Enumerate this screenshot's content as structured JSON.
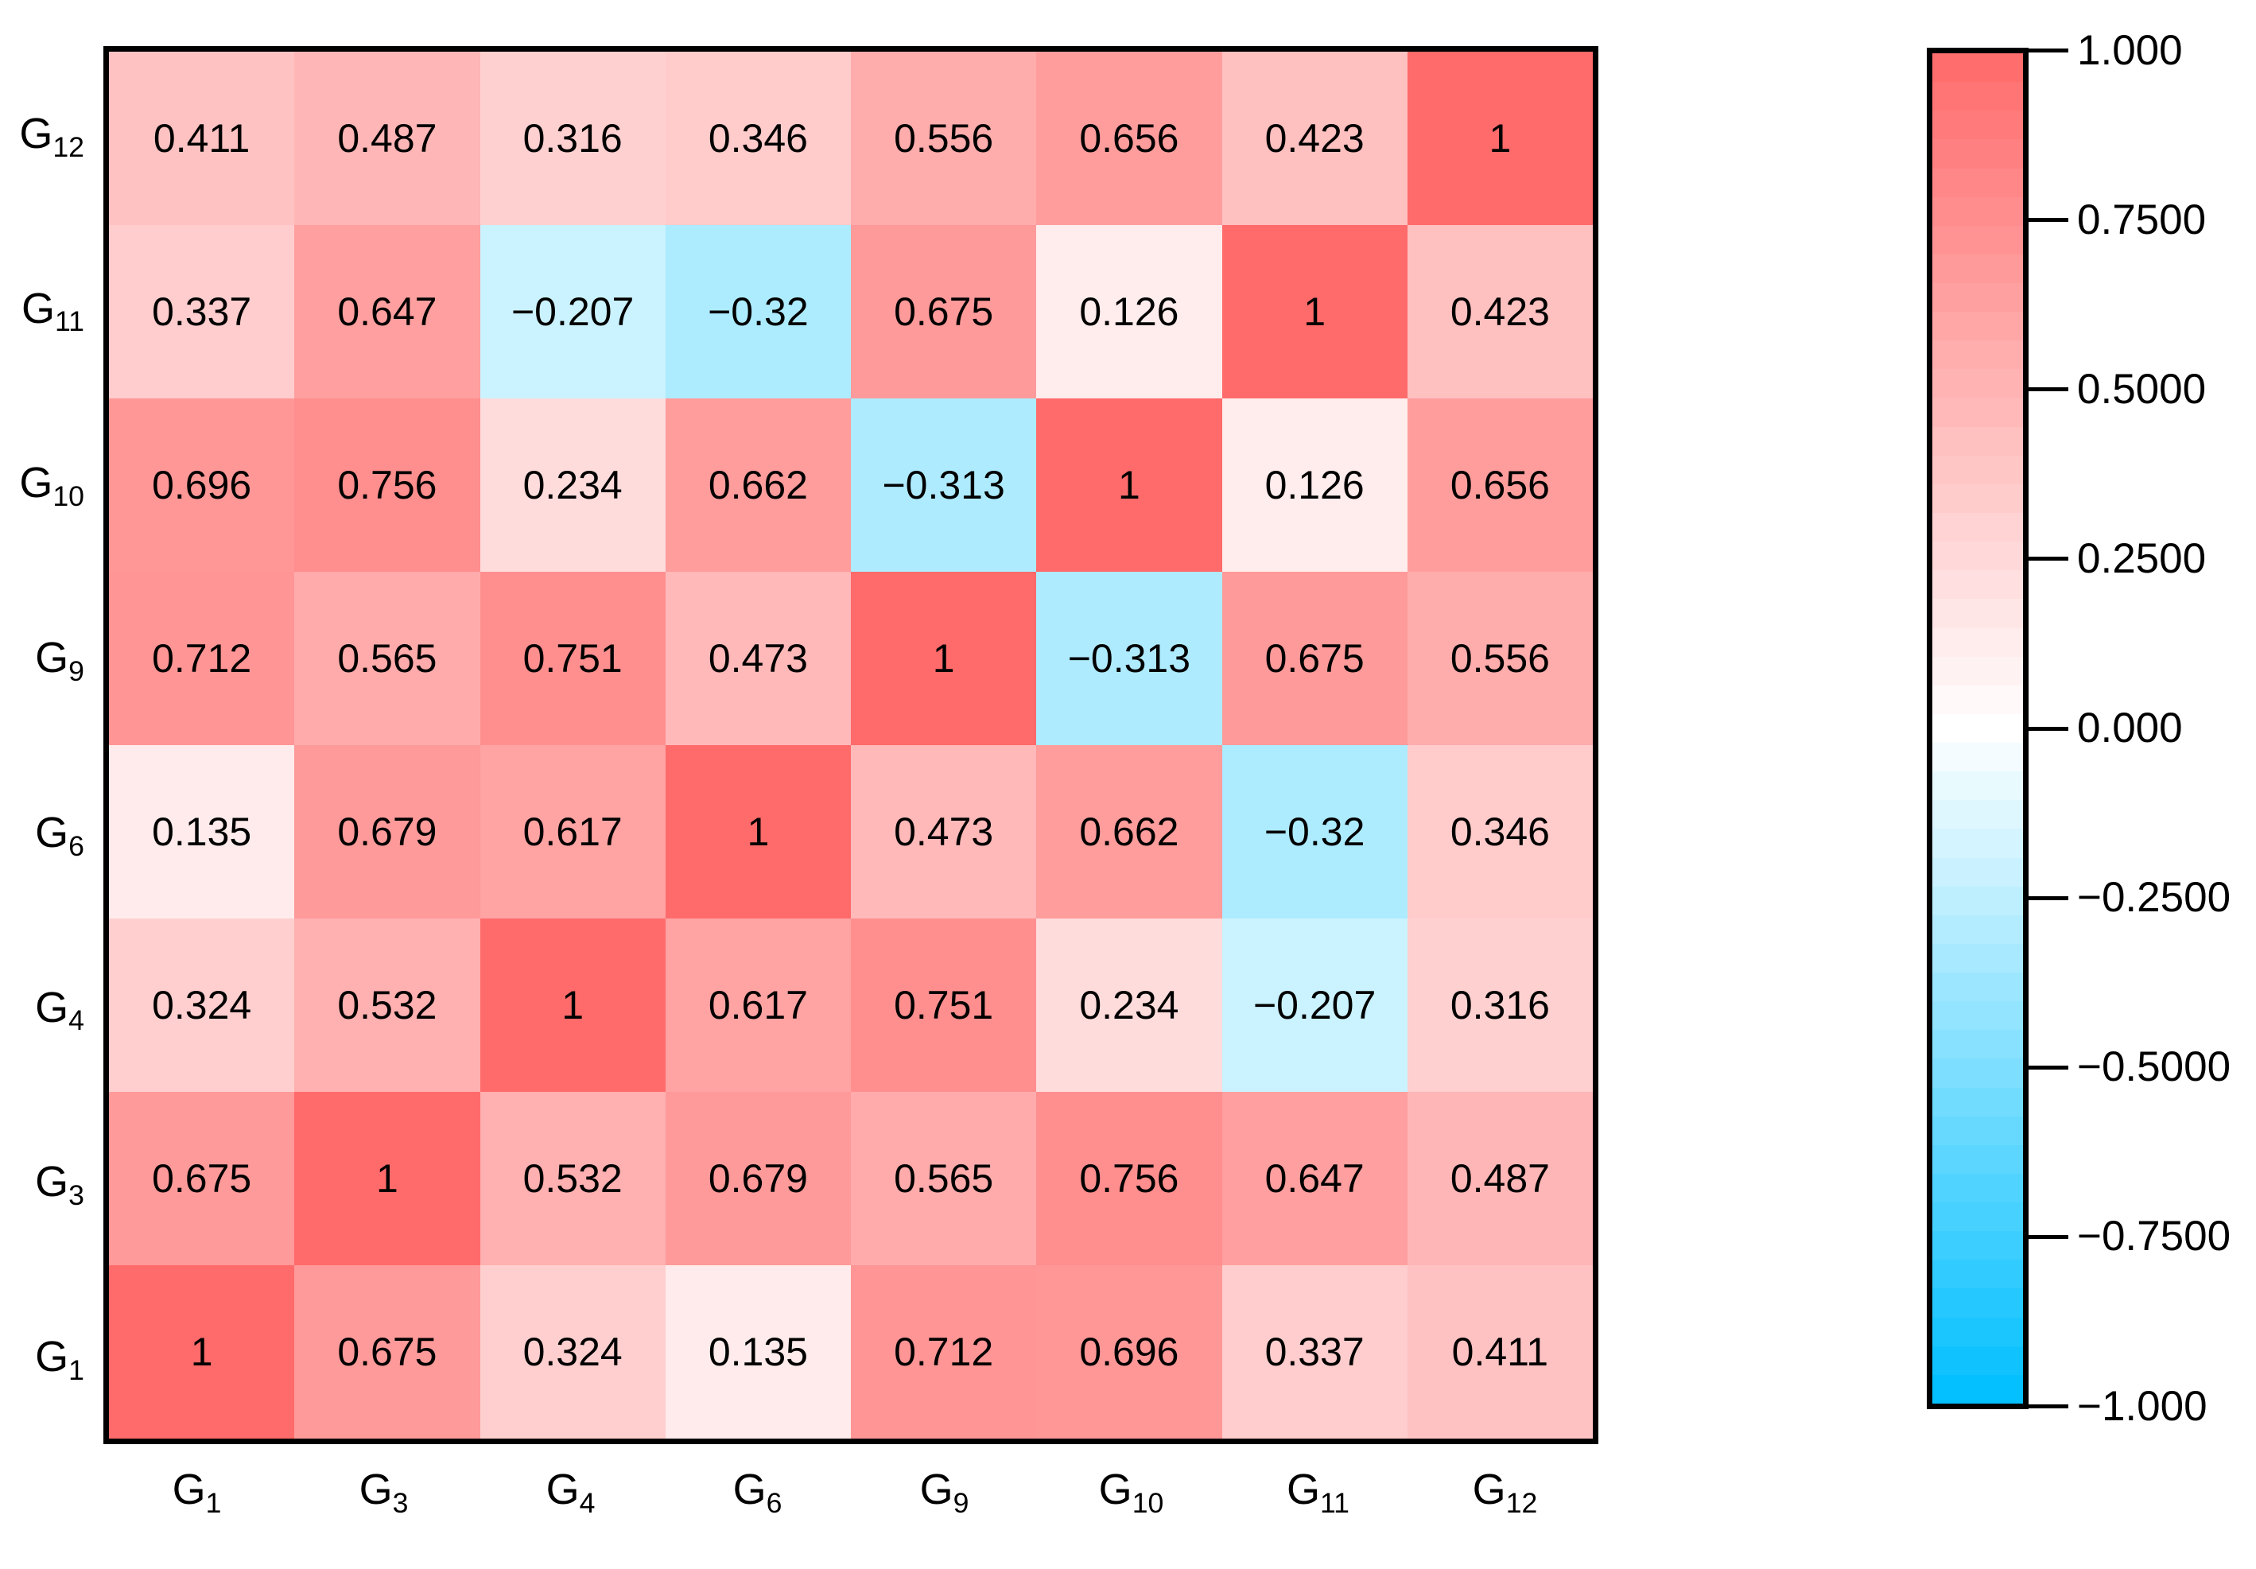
{
  "figure": {
    "background": "#ffffff",
    "frame_color": "#000000",
    "text_color": "#000000"
  },
  "chart_data": {
    "type": "heatmap",
    "title": "",
    "x_categories": [
      "G1",
      "G3",
      "G4",
      "G6",
      "G9",
      "G10",
      "G11",
      "G12"
    ],
    "y_categories_top_to_bottom": [
      "G12",
      "G11",
      "G10",
      "G9",
      "G6",
      "G4",
      "G3",
      "G1"
    ],
    "matrix_rows_top_to_bottom": [
      [
        0.411,
        0.487,
        0.316,
        0.346,
        0.556,
        0.656,
        0.423,
        1
      ],
      [
        0.337,
        0.647,
        -0.207,
        -0.32,
        0.675,
        0.126,
        1,
        0.423
      ],
      [
        0.696,
        0.756,
        0.234,
        0.662,
        -0.313,
        1,
        0.126,
        0.656
      ],
      [
        0.712,
        0.565,
        0.751,
        0.473,
        1,
        -0.313,
        0.675,
        0.556
      ],
      [
        0.135,
        0.679,
        0.617,
        1,
        0.473,
        0.662,
        -0.32,
        0.346
      ],
      [
        0.324,
        0.532,
        1,
        0.617,
        0.751,
        0.234,
        -0.207,
        0.316
      ],
      [
        0.675,
        1,
        0.532,
        0.679,
        0.565,
        0.756,
        0.647,
        0.487
      ],
      [
        1,
        0.675,
        0.324,
        0.135,
        0.712,
        0.696,
        0.337,
        0.411
      ]
    ],
    "value_display": {
      "minus_sign": "−"
    },
    "palette": {
      "min_color": "#00bfff",
      "mid_color": "#ffffff",
      "max_color": "#ff6a6a"
    },
    "colorbar": {
      "min": -1,
      "max": 1,
      "steps": 47,
      "position": "right",
      "tick_values": [
        1,
        0.75,
        0.5,
        0.25,
        0,
        -0.25,
        -0.5,
        -0.75,
        -1
      ],
      "tick_labels": [
        "1.000",
        "0.7500",
        "0.5000",
        "0.2500",
        "0.000",
        "−0.2500",
        "−0.5000",
        "−0.7500",
        "−1.000"
      ]
    },
    "grid": false,
    "legend": false
  }
}
